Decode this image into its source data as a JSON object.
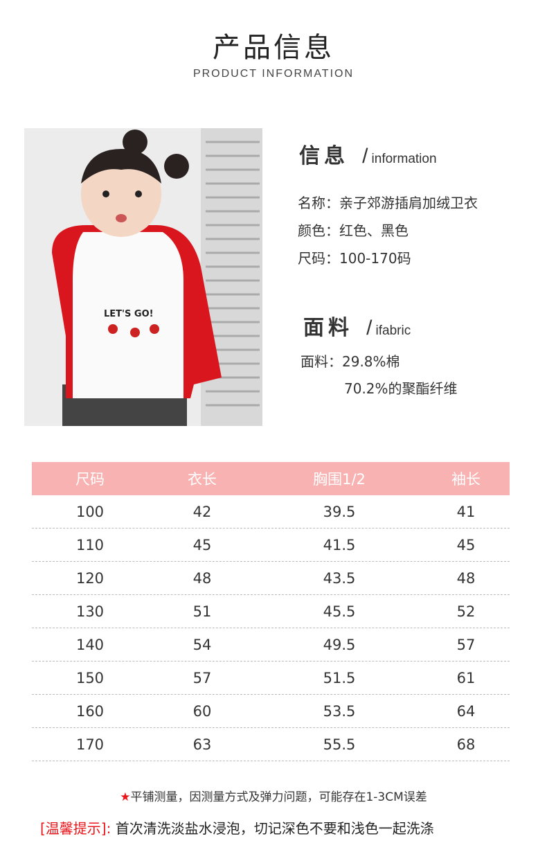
{
  "header": {
    "title": "产品信息",
    "subtitle": "PRODUCT INFORMATION"
  },
  "photo": {
    "shirt_text": "LET'S GO!",
    "colors": {
      "sleeve": "#d9161d",
      "body": "#ffffff",
      "background": "#ececec"
    }
  },
  "info": {
    "heading": "信息",
    "slash": "/",
    "heading_en": "information",
    "lines": [
      "名称：亲子郊游插肩加绒卫衣",
      "颜色：红色、黑色",
      "尺码：100-170码"
    ]
  },
  "fabric": {
    "heading": "面料",
    "slash": "/",
    "heading_en": "ifabric",
    "lines": [
      "面料：29.8%棉",
      "70.2%的聚酯纤维"
    ]
  },
  "size_table": {
    "header_color": "#f8b2b2",
    "columns": [
      "尺码",
      "衣长",
      "胸围1/2",
      "袖长"
    ],
    "rows": [
      [
        "100",
        "42",
        "39.5",
        "41"
      ],
      [
        "110",
        "45",
        "41.5",
        "45"
      ],
      [
        "120",
        "48",
        "43.5",
        "48"
      ],
      [
        "130",
        "51",
        "45.5",
        "52"
      ],
      [
        "140",
        "54",
        "49.5",
        "57"
      ],
      [
        "150",
        "57",
        "51.5",
        "61"
      ],
      [
        "160",
        "60",
        "53.5",
        "64"
      ],
      [
        "170",
        "63",
        "55.5",
        "68"
      ]
    ]
  },
  "note": {
    "icon": "star-icon",
    "text": "平铺测量，因测量方式及弹力问题，可能存在1-3CM误差"
  },
  "tip": {
    "label": "[温馨提示]:",
    "text": "首次清洗淡盐水浸泡，切记深色不要和浅色一起洗涤",
    "label_color": "#e8161b"
  }
}
